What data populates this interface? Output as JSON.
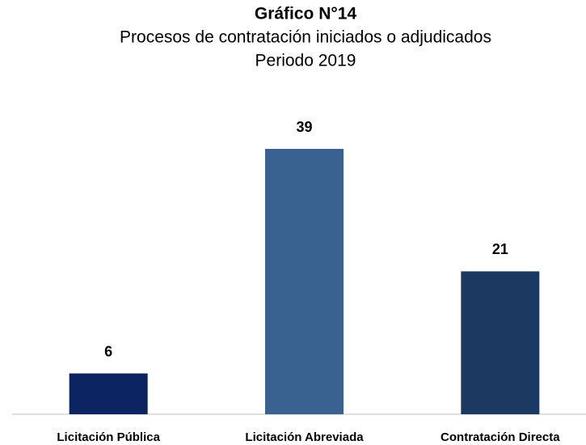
{
  "chart_data": {
    "type": "bar",
    "title": "Gráfico N°14",
    "subtitle": [
      "Procesos de contratación iniciados o adjudicados",
      "Periodo 2019"
    ],
    "categories": [
      "Licitación Pública",
      "Licitación Abreviada",
      "Contratación Directa"
    ],
    "values": [
      6,
      39,
      21
    ],
    "colors": [
      "#0c2461",
      "#3a6291",
      "#1b3961"
    ]
  }
}
